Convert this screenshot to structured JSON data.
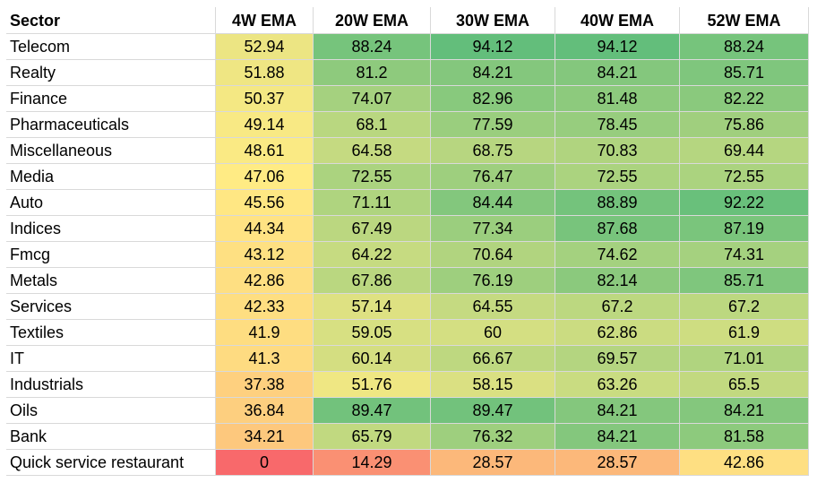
{
  "chart_data": {
    "type": "heatmap",
    "columns": [
      "Sector",
      "4W EMA",
      "20W EMA",
      "30W EMA",
      "40W EMA",
      "52W EMA"
    ],
    "rows": [
      {
        "sector": "Telecom",
        "values": [
          52.94,
          88.24,
          94.12,
          94.12,
          88.24
        ]
      },
      {
        "sector": "Realty",
        "values": [
          51.88,
          81.2,
          84.21,
          84.21,
          85.71
        ]
      },
      {
        "sector": "Finance",
        "values": [
          50.37,
          74.07,
          82.96,
          81.48,
          82.22
        ]
      },
      {
        "sector": "Pharmaceuticals",
        "values": [
          49.14,
          68.1,
          77.59,
          78.45,
          75.86
        ]
      },
      {
        "sector": "Miscellaneous",
        "values": [
          48.61,
          64.58,
          68.75,
          70.83,
          69.44
        ]
      },
      {
        "sector": "Media",
        "values": [
          47.06,
          72.55,
          76.47,
          72.55,
          72.55
        ]
      },
      {
        "sector": "Auto",
        "values": [
          45.56,
          71.11,
          84.44,
          88.89,
          92.22
        ]
      },
      {
        "sector": "Indices",
        "values": [
          44.34,
          67.49,
          77.34,
          87.68,
          87.19
        ]
      },
      {
        "sector": "Fmcg",
        "values": [
          43.12,
          64.22,
          70.64,
          74.62,
          74.31
        ]
      },
      {
        "sector": "Metals",
        "values": [
          42.86,
          67.86,
          76.19,
          82.14,
          85.71
        ]
      },
      {
        "sector": "Services",
        "values": [
          42.33,
          57.14,
          64.55,
          67.2,
          67.2
        ]
      },
      {
        "sector": "Textiles",
        "values": [
          41.9,
          59.05,
          60,
          62.86,
          61.9
        ]
      },
      {
        "sector": "IT",
        "values": [
          41.3,
          60.14,
          66.67,
          69.57,
          71.01
        ]
      },
      {
        "sector": "Industrials",
        "values": [
          37.38,
          51.76,
          58.15,
          63.26,
          65.5
        ]
      },
      {
        "sector": "Oils",
        "values": [
          36.84,
          89.47,
          89.47,
          84.21,
          84.21
        ]
      },
      {
        "sector": "Bank",
        "values": [
          34.21,
          65.79,
          76.32,
          84.21,
          81.58
        ]
      },
      {
        "sector": "Quick service restaurant",
        "values": [
          0,
          14.29,
          28.57,
          28.57,
          42.86
        ]
      }
    ],
    "color_scale": {
      "low": "#f8696b",
      "mid": "#ffeb84",
      "high": "#63be7b"
    }
  }
}
